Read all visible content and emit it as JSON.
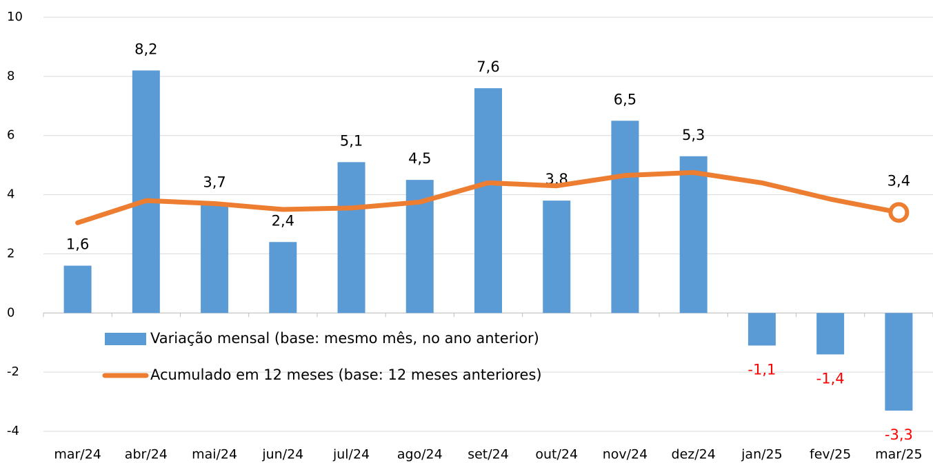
{
  "chart_data": {
    "type": "bar_line",
    "categories": [
      "mar/24",
      "abr/24",
      "mai/24",
      "jun/24",
      "jul/24",
      "ago/24",
      "set/24",
      "out/24",
      "nov/24",
      "dez/24",
      "jan/25",
      "fev/25",
      "mar/25"
    ],
    "series": [
      {
        "name": "Variação mensal (base: mesmo mês, no ano anterior)",
        "type": "bar",
        "color": "#5b9bd5",
        "values": [
          1.6,
          8.2,
          3.7,
          2.4,
          5.1,
          4.5,
          7.6,
          3.8,
          6.5,
          5.3,
          -1.1,
          -1.4,
          -3.3
        ],
        "value_labels": [
          "1,6",
          "8,2",
          "3,7",
          "2,4",
          "5,1",
          "4,5",
          "7,6",
          "3,8",
          "6,5",
          "5,3",
          "-1,1",
          "-1,4",
          "-3,3"
        ]
      },
      {
        "name": "Acumulado em 12 meses (base: 12 meses anteriores)",
        "type": "line",
        "color": "#ed7d31",
        "values": [
          3.05,
          3.8,
          3.7,
          3.5,
          3.55,
          3.75,
          4.4,
          4.3,
          4.65,
          4.75,
          4.4,
          3.85,
          3.4
        ],
        "value_labels": [
          null,
          null,
          null,
          null,
          null,
          null,
          null,
          null,
          null,
          null,
          null,
          null,
          "3,4"
        ]
      }
    ],
    "ylim": [
      -4,
      10
    ],
    "yticks": [
      -4,
      -2,
      0,
      2,
      4,
      6,
      8,
      10
    ],
    "grid": true,
    "negative_label_color": "#ff0000",
    "legend": "lower left"
  }
}
